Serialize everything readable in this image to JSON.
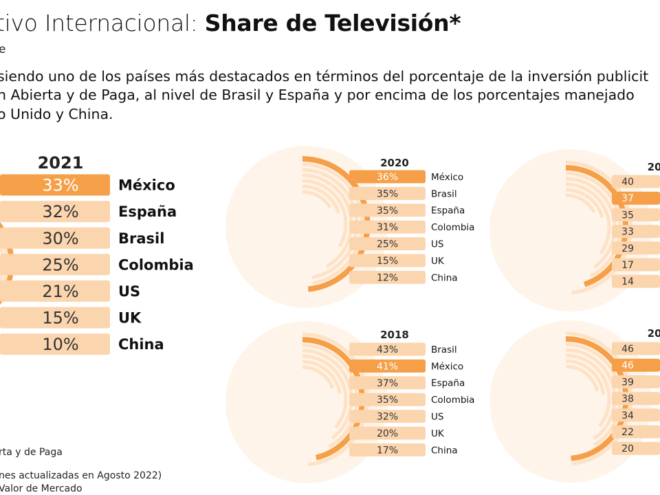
{
  "header": {
    "title_light": "tivo Internacional: ",
    "title_bold": "Share de Televisión*",
    "subtitle": "e"
  },
  "description": {
    "line1": "siendo uno de los países más destacados en términos del porcentaje de la inversión publicit",
    "line2": "n Abierta y de Paga, al nivel de Brasil y España y por encima de los porcentajes manejado",
    "line3": "o Unido y China."
  },
  "colors": {
    "highlight": "#f5a048",
    "bar": "#fbd5ae",
    "arc_light": "#fde2c6",
    "ring_bg": "#fef4ea"
  },
  "chart_data": [
    {
      "type": "bar",
      "title": "2021",
      "highlight": "México",
      "categories": [
        "México",
        "España",
        "Brasil",
        "Colombia",
        "US",
        "UK",
        "China"
      ],
      "labels": [
        "33%",
        "32%",
        "30%",
        "25%",
        "21%",
        "15%",
        "10%"
      ],
      "values": [
        33,
        32,
        30,
        25,
        21,
        15,
        10
      ]
    },
    {
      "type": "bar",
      "title": "2020",
      "highlight": "México",
      "categories": [
        "México",
        "Brasil",
        "España",
        "Colombia",
        "US",
        "UK",
        "China"
      ],
      "labels": [
        "36%",
        "35%",
        "35%",
        "31%",
        "25%",
        "15%",
        "12%"
      ],
      "values": [
        36,
        35,
        35,
        31,
        25,
        15,
        12
      ]
    },
    {
      "type": "bar",
      "title": "20",
      "highlight_index": 1,
      "categories": [],
      "labels": [
        "40",
        "37",
        "35",
        "33",
        "29",
        "17",
        "14"
      ],
      "values": [
        40,
        37,
        35,
        33,
        29,
        17,
        14
      ]
    },
    {
      "type": "bar",
      "title": "2018",
      "highlight": "México",
      "categories": [
        "Brasil",
        "México",
        "España",
        "Colombia",
        "US",
        "UK",
        "China"
      ],
      "labels": [
        "43%",
        "41%",
        "37%",
        "35%",
        "32%",
        "20%",
        "17%"
      ],
      "values": [
        43,
        41,
        37,
        35,
        32,
        20,
        17
      ]
    },
    {
      "type": "bar",
      "title": "20",
      "highlight_index": 1,
      "categories": [],
      "labels": [
        "46",
        "46",
        "39",
        "38",
        "34",
        "22",
        "20"
      ],
      "values": [
        46,
        46,
        39,
        38,
        34,
        22,
        20
      ]
    }
  ],
  "footnotes": {
    "line1": "rta y de Paga",
    "line2": "nes actualizadas en Agosto 2022)",
    "line3": "Valor de Mercado"
  }
}
